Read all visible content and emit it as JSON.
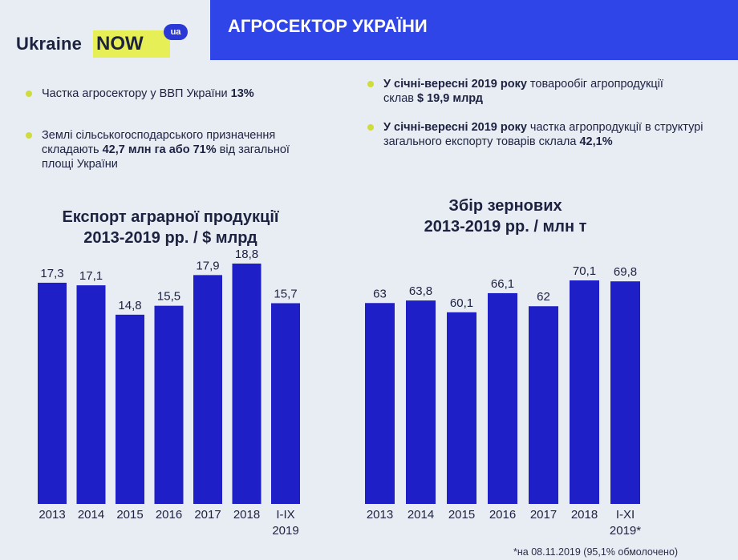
{
  "logo": {
    "word1": "Ukraine",
    "word2": "NOW",
    "badge": "ua"
  },
  "header": {
    "title": "АГРОСЕКТОР УКРАЇНИ"
  },
  "bullets_left": [
    {
      "parts": [
        {
          "t": "Частка агросектору у ВВП України ",
          "b": false
        },
        {
          "t": "13%",
          "b": true
        }
      ]
    },
    {
      "parts": [
        {
          "t": "Землі сільськогосподарського призначення складають ",
          "b": false
        },
        {
          "t": "42,7 млн га або 71%",
          "b": true
        },
        {
          "t": "  від загальної площі України",
          "b": false
        }
      ]
    }
  ],
  "bullets_right": [
    {
      "parts": [
        {
          "t": "У січні-вересні 2019 року",
          "b": true
        },
        {
          "t": " товарообіг агропродукції склав ",
          "b": false
        },
        {
          "t": "$ 19,9 млрд",
          "b": true
        }
      ]
    },
    {
      "parts": [
        {
          "t": "У січні-вересні 2019 року",
          "b": true
        },
        {
          "t": " частка агропродукції в структурі загального експорту товарів склала ",
          "b": false
        },
        {
          "t": "42,1%",
          "b": true
        }
      ]
    }
  ],
  "colors": {
    "bar": "#1f1fc8",
    "banner": "#2f45e8",
    "accent": "#cfdc3c"
  },
  "chart_data": [
    {
      "type": "bar",
      "title_line1": "Експорт аграрної продукції",
      "title_line2": "2013-2019 рр. / $ млрд",
      "categories": [
        "2013",
        "2014",
        "2015",
        "2016",
        "2017",
        "2018",
        "I-IX\n2019"
      ],
      "values": [
        17.3,
        17.1,
        14.8,
        15.5,
        17.9,
        18.8,
        15.7
      ],
      "value_labels": [
        "17,3",
        "17,1",
        "14,8",
        "15,5",
        "17,9",
        "18,8",
        "15,7"
      ]
    },
    {
      "type": "bar",
      "title_line1": "Збір зернових",
      "title_line2": "2013-2019 рр. / млн т",
      "categories": [
        "2013",
        "2014",
        "2015",
        "2016",
        "2017",
        "2018",
        "I-XI\n2019*"
      ],
      "values": [
        63,
        63.8,
        60.1,
        66.1,
        62,
        70.1,
        69.8
      ],
      "value_labels": [
        "63",
        "63,8",
        "60,1",
        "66,1",
        "62",
        "70,1",
        "69,8"
      ],
      "footnote": "*на 08.11.2019 (95,1% обмолочено)"
    }
  ]
}
